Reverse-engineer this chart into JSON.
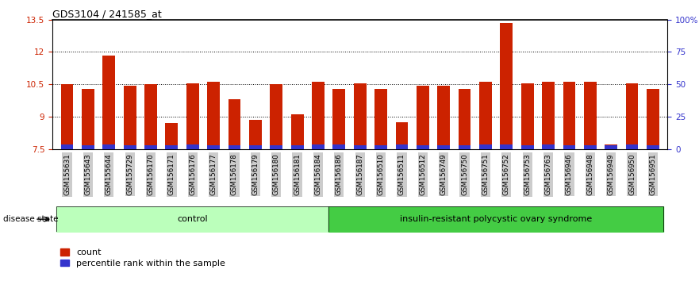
{
  "title": "GDS3104 / 241585_at",
  "samples": [
    "GSM155631",
    "GSM155643",
    "GSM155644",
    "GSM155729",
    "GSM156170",
    "GSM156171",
    "GSM156176",
    "GSM156177",
    "GSM156178",
    "GSM156179",
    "GSM156180",
    "GSM156181",
    "GSM156184",
    "GSM156186",
    "GSM156187",
    "GSM156510",
    "GSM156511",
    "GSM156512",
    "GSM156749",
    "GSM156750",
    "GSM156751",
    "GSM156752",
    "GSM156753",
    "GSM156763",
    "GSM156946",
    "GSM156948",
    "GSM156949",
    "GSM156950",
    "GSM156951"
  ],
  "count_values": [
    10.5,
    10.3,
    11.85,
    10.45,
    10.5,
    8.7,
    10.55,
    10.6,
    9.8,
    8.85,
    10.5,
    9.1,
    10.6,
    10.3,
    10.55,
    10.3,
    8.75,
    10.45,
    10.45,
    10.3,
    10.6,
    13.35,
    10.55,
    10.6,
    10.6,
    10.6,
    7.7,
    10.55,
    10.3
  ],
  "percentile_values": [
    7.72,
    7.67,
    7.72,
    7.67,
    7.67,
    7.67,
    7.72,
    7.67,
    7.67,
    7.67,
    7.67,
    7.67,
    7.72,
    7.72,
    7.67,
    7.67,
    7.72,
    7.67,
    7.67,
    7.67,
    7.72,
    7.72,
    7.67,
    7.72,
    7.67,
    7.67,
    7.67,
    7.72,
    7.67
  ],
  "control_count": 13,
  "disease_count": 16,
  "ylim_left": [
    7.5,
    13.5
  ],
  "yticks_left": [
    7.5,
    9.0,
    10.5,
    12.0,
    13.5
  ],
  "ytick_labels_left": [
    "7.5",
    "9",
    "10.5",
    "12",
    "13.5"
  ],
  "ylim_right": [
    0,
    100
  ],
  "yticks_right": [
    0,
    25,
    50,
    75,
    100
  ],
  "ytick_labels_right": [
    "0",
    "25",
    "50",
    "75",
    "100%"
  ],
  "bar_color_red": "#cc2200",
  "bar_color_blue": "#3333cc",
  "bg_color": "#ffffff",
  "plot_bg_color": "#ffffff",
  "label_color_left": "#cc2200",
  "label_color_right": "#3333cc",
  "control_bg": "#bbffbb",
  "disease_bg": "#44cc44",
  "sample_bg": "#cccccc",
  "bar_width": 0.6,
  "control_label": "control",
  "disease_label": "insulin-resistant polycystic ovary syndrome",
  "disease_state_label": "disease state",
  "legend_count": "count",
  "legend_percentile": "percentile rank within the sample"
}
